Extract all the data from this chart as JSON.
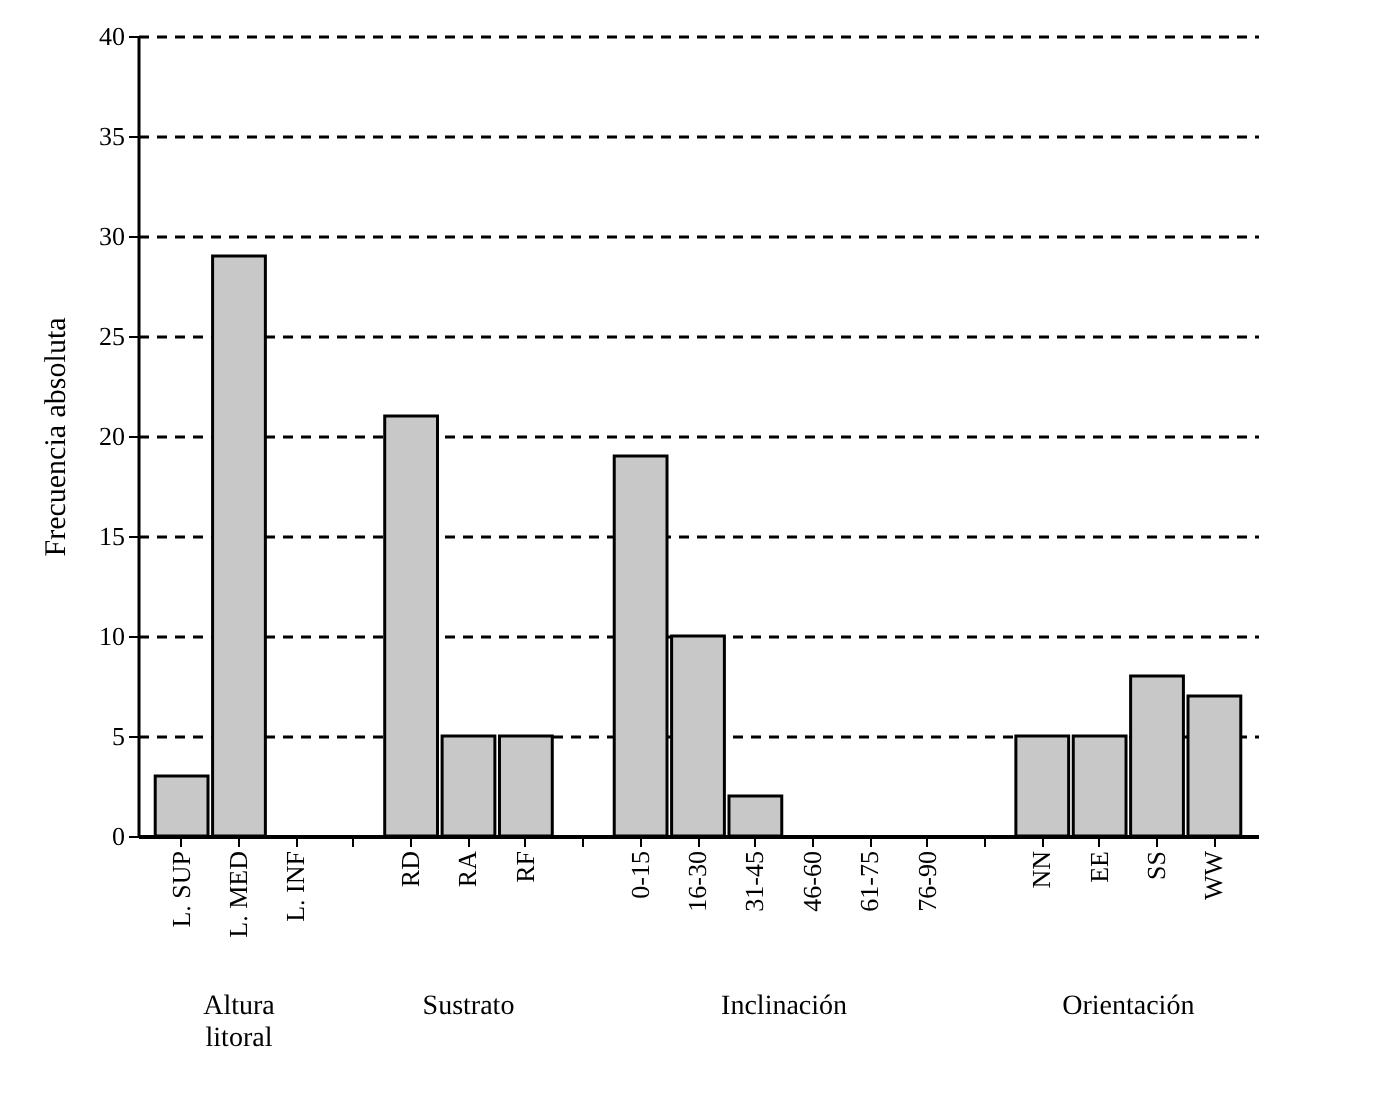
{
  "chart_data": {
    "type": "bar",
    "ylabel": "Frecuencia absoluta",
    "categories": [
      "L. SUP",
      "L. MED",
      "L. INF",
      null,
      "RD",
      "RA",
      "RF",
      null,
      "0-15",
      "16-30",
      "31-45",
      "46-60",
      "61-75",
      "76-90",
      null,
      "NN",
      "EE",
      "SS",
      "WW"
    ],
    "values": [
      3,
      29,
      0,
      null,
      21,
      5,
      5,
      null,
      19,
      10,
      2,
      0,
      0,
      0,
      null,
      5,
      5,
      8,
      7
    ],
    "color": "#c8c8c8",
    "ylim": [
      0,
      40
    ],
    "yticks": [
      0,
      5,
      10,
      15,
      20,
      25,
      30,
      35,
      40
    ],
    "grid": "y",
    "annotations": [
      "Altura litoral",
      "Sustrato",
      "Inclinación",
      "Orientación"
    ]
  }
}
